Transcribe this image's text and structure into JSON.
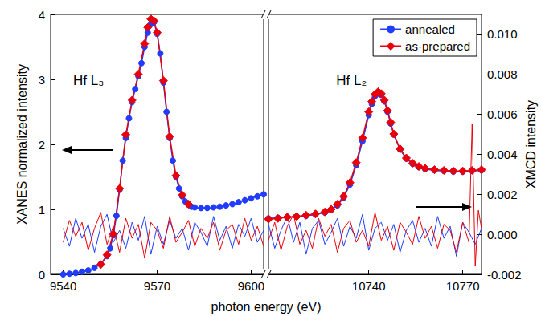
{
  "chart_data": [
    {
      "type": "line",
      "x_label": "photon energy (eV)",
      "y_label": "XANES normalized intensity",
      "xlim": [
        9536,
        9604
      ],
      "xticks": [
        9540,
        9570,
        9600
      ],
      "ylim": [
        0,
        4
      ],
      "yticks": [
        0,
        1,
        2,
        3,
        4
      ],
      "grid": false,
      "annotations": [
        "Hf L₃"
      ],
      "series": [
        {
          "name": "annealed",
          "color": "#1f3cff",
          "axis": "y",
          "type": "line",
          "marker": "circle",
          "line_style": "solid",
          "x": [
            9540,
            9542,
            9544,
            9546,
            9548,
            9550,
            9552,
            9554,
            9555,
            9556,
            9557,
            9558,
            9559,
            9560,
            9561,
            9562,
            9563,
            9564,
            9565,
            9566,
            9567,
            9568,
            9569,
            9570,
            9571,
            9572,
            9573,
            9574,
            9575,
            9576,
            9577,
            9578,
            9579,
            9580,
            9581,
            9582,
            9584,
            9586,
            9588,
            9590,
            9592,
            9594,
            9596,
            9598,
            9600,
            9602,
            9604
          ],
          "values": [
            0.0,
            0.01,
            0.02,
            0.04,
            0.06,
            0.1,
            0.16,
            0.28,
            0.4,
            0.6,
            0.9,
            1.3,
            1.75,
            2.1,
            2.4,
            2.65,
            2.85,
            3.05,
            3.25,
            3.5,
            3.72,
            3.85,
            3.88,
            3.7,
            3.4,
            2.95,
            2.5,
            2.1,
            1.75,
            1.5,
            1.32,
            1.2,
            1.12,
            1.07,
            1.04,
            1.03,
            1.02,
            1.02,
            1.03,
            1.04,
            1.06,
            1.08,
            1.11,
            1.14,
            1.17,
            1.2,
            1.23
          ]
        },
        {
          "name": "as-prepared",
          "color": "#e8000b",
          "axis": "y",
          "type": "line",
          "marker": "diamond",
          "line_style": "solid",
          "x": [
            9552,
            9554,
            9556,
            9558,
            9560,
            9562,
            9564,
            9566,
            9567,
            9568,
            9569,
            9570,
            9572,
            9574,
            9576,
            9578,
            9580
          ],
          "values": [
            0.15,
            0.3,
            0.62,
            1.32,
            2.15,
            2.68,
            3.08,
            3.55,
            3.8,
            3.93,
            3.9,
            3.72,
            2.98,
            2.12,
            1.52,
            1.22,
            1.08
          ]
        },
        {
          "name": "annealed",
          "color": "#1f3cff",
          "axis": "y2",
          "type": "line",
          "marker": "none",
          "line_style": "solid",
          "x": [
            9540,
            9542,
            9544,
            9546,
            9548,
            9550,
            9552,
            9554,
            9556,
            9558,
            9560,
            9562,
            9564,
            9566,
            9568,
            9570,
            9572,
            9574,
            9576,
            9578,
            9580,
            9582,
            9584,
            9586,
            9588,
            9590,
            9592,
            9594,
            9596,
            9598,
            9600,
            9602,
            9604
          ],
          "values": [
            0.0003,
            -0.0006,
            0.0008,
            -0.0002,
            0.0005,
            -0.0009,
            0.0004,
            0.001,
            -0.0004,
            0.0002,
            -0.0007,
            0.0006,
            -0.0003,
            0.0009,
            -0.001,
            0.0004,
            -0.0005,
            0.0007,
            -0.0002,
            0.0003,
            -0.0008,
            0.0006,
            0.0001,
            -0.0006,
            0.0009,
            -0.0003,
            0.0004,
            -0.0007,
            0.0005,
            -0.0001,
            0.0008,
            -0.0004,
            0.0002
          ]
        },
        {
          "name": "as-prepared",
          "color": "#e8000b",
          "axis": "y2",
          "type": "line",
          "marker": "none",
          "line_style": "solid",
          "x": [
            9540,
            9542,
            9544,
            9546,
            9548,
            9550,
            9552,
            9554,
            9556,
            9558,
            9560,
            9562,
            9564,
            9566,
            9568,
            9570,
            9572,
            9574,
            9576,
            9578,
            9580,
            9582,
            9584,
            9586,
            9588,
            9590,
            9592,
            9594,
            9596,
            9598,
            9600,
            9602,
            9604
          ],
          "values": [
            -0.0004,
            0.0007,
            -0.0001,
            0.0006,
            -0.0008,
            0.0003,
            0.0011,
            -0.0005,
            0.0004,
            -0.0009,
            0.0008,
            -0.0002,
            0.0005,
            -0.0012,
            0.0006,
            0.0002,
            -0.0007,
            0.0009,
            -0.0004,
            0.0001,
            0.0007,
            -0.0006,
            0.0003,
            -0.0002,
            0.0006,
            -0.0008,
            0.0002,
            0.0005,
            -0.0005,
            0.0008,
            -0.0003,
            0.0004,
            -0.0006
          ]
        }
      ]
    },
    {
      "type": "line",
      "y2_label": "XMCD intensity",
      "xlim": [
        10708,
        10776
      ],
      "xticks": [
        10740,
        10770
      ],
      "y2lim": [
        -0.002,
        0.011
      ],
      "y2ticks": [
        -0.002,
        {
          "value": 0,
          "label": "0.000"
        },
        0.002,
        0.004,
        0.006,
        0.008,
        {
          "value": 0.01,
          "label": "0.010"
        }
      ],
      "grid": false,
      "legend": "upper right",
      "annotations": [
        "Hf L₂"
      ],
      "series": [
        {
          "name": "annealed",
          "color": "#1f3cff",
          "axis": "y",
          "type": "line",
          "marker": "circle",
          "line_style": "solid",
          "x": [
            10708,
            10711,
            10714,
            10717,
            10720,
            10723,
            10726,
            10728,
            10730,
            10732,
            10734,
            10736,
            10738,
            10740,
            10741,
            10742,
            10743,
            10744,
            10745,
            10746,
            10747,
            10748,
            10750,
            10752,
            10754,
            10756,
            10758,
            10761,
            10764,
            10767,
            10770,
            10773,
            10776
          ],
          "values": [
            0.86,
            0.87,
            0.88,
            0.89,
            0.9,
            0.92,
            0.95,
            0.99,
            1.06,
            1.18,
            1.38,
            1.68,
            2.05,
            2.45,
            2.62,
            2.74,
            2.78,
            2.76,
            2.66,
            2.5,
            2.32,
            2.15,
            1.92,
            1.78,
            1.7,
            1.65,
            1.62,
            1.6,
            1.59,
            1.58,
            1.58,
            1.59,
            1.6
          ]
        },
        {
          "name": "as-prepared",
          "color": "#e8000b",
          "axis": "y",
          "type": "line",
          "marker": "diamond",
          "line_style": "solid",
          "x": [
            10708,
            10711,
            10714,
            10717,
            10720,
            10723,
            10726,
            10728,
            10730,
            10732,
            10734,
            10736,
            10738,
            10740,
            10741,
            10742,
            10743,
            10744,
            10745,
            10746,
            10747,
            10748,
            10750,
            10752,
            10754,
            10756,
            10758,
            10761,
            10764,
            10767,
            10770,
            10773,
            10776
          ],
          "values": [
            0.85,
            0.86,
            0.88,
            0.89,
            0.91,
            0.93,
            0.96,
            1.0,
            1.08,
            1.2,
            1.41,
            1.72,
            2.1,
            2.5,
            2.66,
            2.77,
            2.81,
            2.78,
            2.68,
            2.52,
            2.34,
            2.16,
            1.93,
            1.79,
            1.71,
            1.66,
            1.63,
            1.61,
            1.6,
            1.59,
            1.59,
            1.6,
            1.61
          ]
        },
        {
          "name": "annealed",
          "color": "#1f3cff",
          "axis": "y2",
          "type": "line",
          "marker": "none",
          "line_style": "solid",
          "x": [
            10708,
            10710,
            10712,
            10714,
            10716,
            10718,
            10720,
            10722,
            10724,
            10726,
            10728,
            10730,
            10732,
            10734,
            10736,
            10738,
            10740,
            10742,
            10744,
            10746,
            10748,
            10750,
            10752,
            10754,
            10756,
            10758,
            10760,
            10762,
            10764,
            10766,
            10768,
            10770,
            10772,
            10774,
            10776
          ],
          "values": [
            0.0005,
            -0.0007,
            0.0002,
            0.0009,
            -0.0004,
            0.0006,
            -0.001,
            0.0003,
            0.0007,
            -0.0005,
            0.0001,
            0.0008,
            -0.0006,
            0.0004,
            -0.0002,
            0.001,
            -0.0008,
            0.0003,
            0.0006,
            -0.0003,
            0.0005,
            -0.0009,
            0.0002,
            0.0007,
            -0.0004,
            0.0003,
            -0.0006,
            0.0009,
            -0.0002,
            0.0004,
            -0.0011,
            0.0006,
            0.0001,
            -0.0005,
            0.0003
          ]
        },
        {
          "name": "as-prepared",
          "color": "#e8000b",
          "axis": "y2",
          "type": "line",
          "marker": "none",
          "line_style": "solid",
          "x": [
            10708,
            10710,
            10712,
            10714,
            10716,
            10718,
            10720,
            10722,
            10724,
            10726,
            10728,
            10730,
            10732,
            10734,
            10736,
            10738,
            10740,
            10742,
            10744,
            10746,
            10748,
            10750,
            10752,
            10754,
            10756,
            10758,
            10760,
            10762,
            10764,
            10766,
            10768,
            10770,
            10772,
            10773,
            10774,
            10775,
            10776
          ],
          "values": [
            -0.0003,
            0.0006,
            -0.0008,
            0.0004,
            0.001,
            -0.0005,
            0.0002,
            -0.0007,
            0.0008,
            -0.0001,
            0.0005,
            -0.0009,
            0.0003,
            0.0007,
            -0.0004,
            0.0002,
            -0.0006,
            0.0011,
            -0.0003,
            0.0004,
            -0.0008,
            0.0006,
            0.0001,
            -0.0005,
            0.0009,
            -0.0002,
            0.0004,
            -0.0007,
            0.0005,
            0.0002,
            -0.0009,
            0.0006,
            -0.0004,
            0.0055,
            -0.0016,
            0.0012,
            0.0003
          ]
        }
      ]
    }
  ]
}
